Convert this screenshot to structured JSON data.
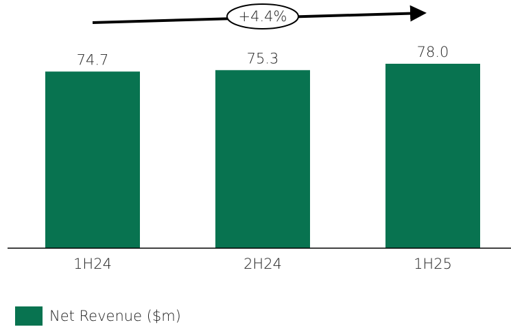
{
  "chart_data": {
    "type": "bar",
    "categories": [
      "1H24",
      "2H24",
      "1H25"
    ],
    "series": [
      {
        "name": "Net Revenue ($m)",
        "color": "#087350",
        "values": [
          74.7,
          75.3,
          78
        ],
        "value_labels": [
          "74.7",
          "75.3",
          "78.0"
        ]
      }
    ],
    "annotation": "+4.4%"
  }
}
